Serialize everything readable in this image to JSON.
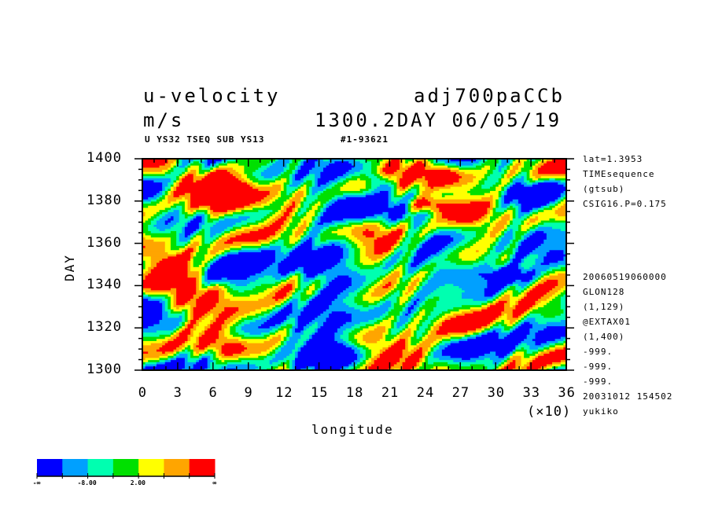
{
  "header": {
    "title_left": "u-velocity",
    "title_right": "adj700paCCb",
    "units": "m/s",
    "time_label": "1300.2DAY 06/05/19",
    "sub_left": "U YS32 TSEQ SUB YS13",
    "sub_right": "#1-93621"
  },
  "side_info": {
    "top": [
      "lat=1.3953",
      "TIMEsequence",
      "(gtsub)",
      "CSIG16.P=0.175"
    ],
    "bottom": [
      "20060519060000",
      "GLON128",
      "(1,129)",
      "@EXTAX01",
      "(1,400)",
      "-999.",
      "-999.",
      "-999.",
      "20031012 154502",
      "yukiko"
    ]
  },
  "chart_data": {
    "type": "heatmap",
    "title": "u-velocity",
    "xlabel": "longitude",
    "ylabel": "DAY",
    "x_multiplier_label": "(×10)",
    "xlim": [
      0,
      36
    ],
    "ylim": [
      1300,
      1400
    ],
    "x_ticks": [
      "0",
      "3",
      "6",
      "9",
      "12",
      "15",
      "18",
      "21",
      "24",
      "27",
      "30",
      "33",
      "36"
    ],
    "y_ticks": [
      "1300",
      "1320",
      "1340",
      "1360",
      "1380",
      "1400"
    ],
    "colorbar": {
      "colors": [
        "#0000ff",
        "#00a0ff",
        "#00ffb0",
        "#00e000",
        "#ffff00",
        "#ffa500",
        "#ff0000"
      ],
      "labels": [
        "-∞",
        "-8.00",
        "2.00",
        "∞"
      ]
    },
    "red_regions": [
      {
        "x": [
          5,
          9
        ],
        "y": [
          1372,
          1395
        ]
      },
      {
        "x": [
          22,
          26
        ],
        "y": [
          1375,
          1382
        ]
      },
      {
        "x": [
          23,
          27
        ],
        "y": [
          1388,
          1400
        ]
      },
      {
        "x": [
          5,
          9
        ],
        "y": [
          1303,
          1320
        ]
      },
      {
        "x": [
          1,
          4
        ],
        "y": [
          1340,
          1355
        ]
      }
    ],
    "blue_regions": [
      {
        "x": [
          10,
          18
        ],
        "y": [
          1335,
          1360
        ]
      },
      {
        "x": [
          12,
          19
        ],
        "y": [
          1300,
          1325
        ]
      },
      {
        "x": [
          32,
          36
        ],
        "y": [
          1375,
          1390
        ]
      },
      {
        "x": [
          19,
          21
        ],
        "y": [
          1385,
          1395
        ]
      },
      {
        "x": [
          29,
          33
        ],
        "y": [
          1340,
          1350
        ]
      }
    ]
  }
}
